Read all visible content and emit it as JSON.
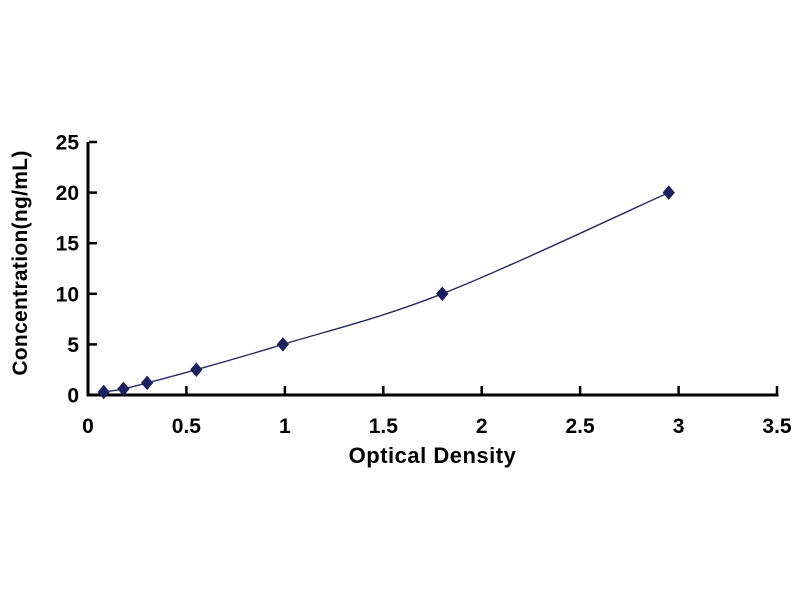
{
  "figure": {
    "background": "#ffffff"
  },
  "chart_data": {
    "type": "line",
    "title": "",
    "xlabel": "Optical Density",
    "ylabel": "Concentration(ng/mL)",
    "series": [
      {
        "x": [
          0.08,
          0.18,
          0.3,
          0.55,
          0.99,
          1.8,
          2.95
        ],
        "y": [
          0.3,
          0.6,
          1.2,
          2.5,
          5,
          10,
          20
        ]
      }
    ],
    "xlim": [
      0,
      3.5
    ],
    "ylim": [
      0,
      25
    ],
    "x_ticks": [
      0,
      0.5,
      1,
      1.5,
      2,
      2.5,
      3,
      3.5
    ],
    "y_ticks": [
      0,
      5,
      10,
      15,
      20,
      25
    ],
    "grid": false,
    "legend": "none",
    "marker": "diamond",
    "colors": {
      "line": "#2a2a63",
      "marker": "#1c2060",
      "axis": "#000000",
      "text": "#000000"
    }
  }
}
